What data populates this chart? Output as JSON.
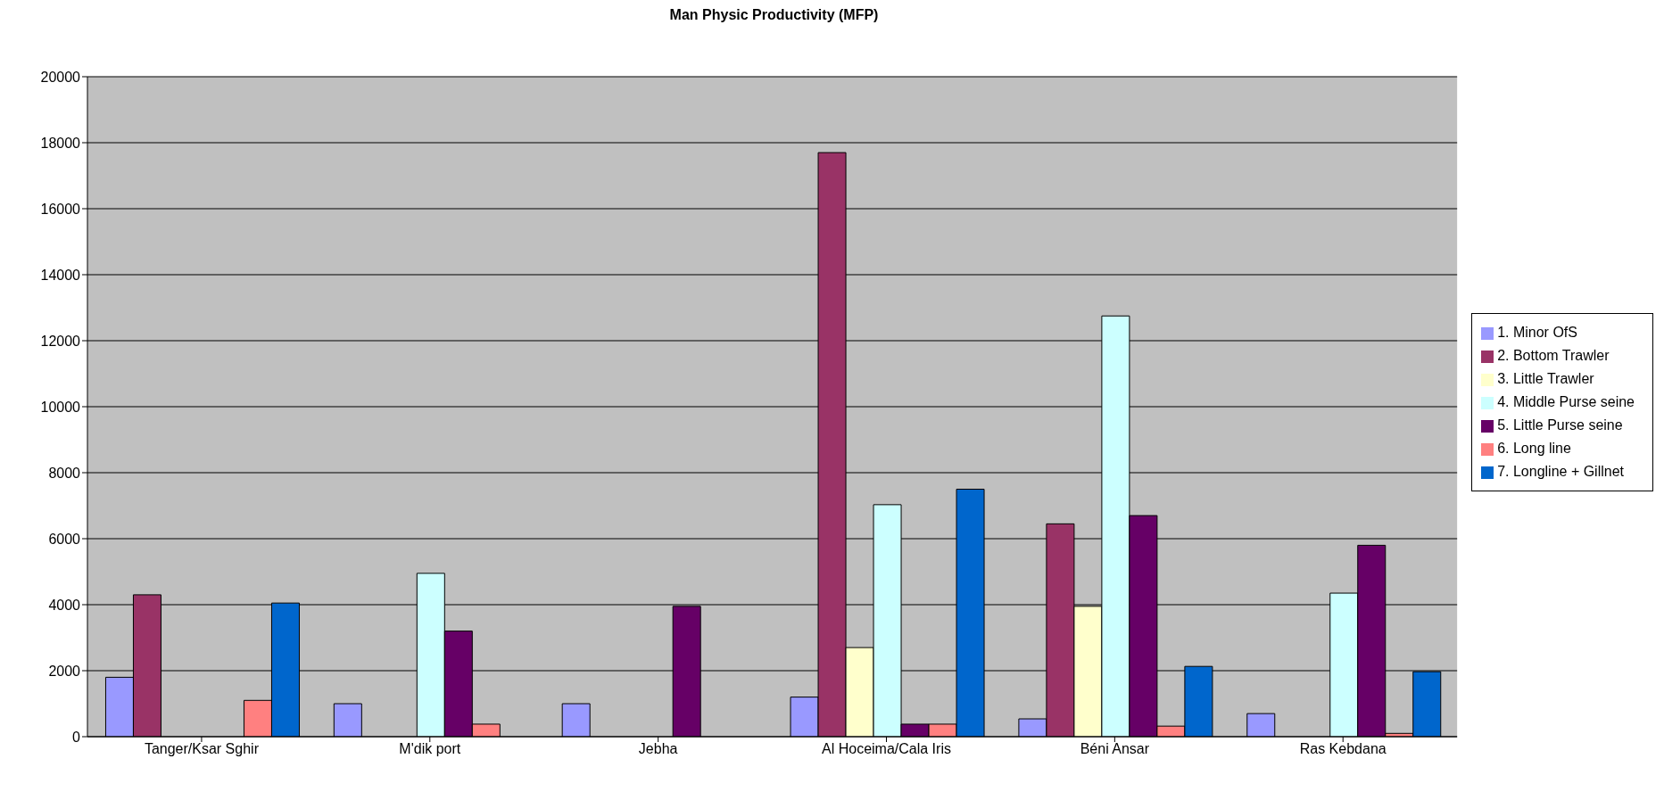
{
  "chart_data": {
    "type": "bar",
    "title": "Man Physic Productivity (MFP)",
    "categories": [
      "Tanger/Ksar Sghir",
      "M'dik port",
      "Jebha",
      "Al Hoceima/Cala Iris",
      "Béni Ansar",
      "Ras Kebdana"
    ],
    "series": [
      {
        "name": "1. Minor OfS",
        "color": "#9999ff",
        "values": [
          1800,
          1000,
          1000,
          1200,
          540,
          700
        ]
      },
      {
        "name": "2. Bottom Trawler",
        "color": "#993366",
        "values": [
          4300,
          null,
          null,
          17700,
          6450,
          null
        ]
      },
      {
        "name": "3. Little Trawler",
        "color": "#ffffcc",
        "values": [
          null,
          null,
          null,
          2700,
          3950,
          null
        ]
      },
      {
        "name": "4. Middle Purse seine",
        "color": "#ccffff",
        "values": [
          null,
          4950,
          null,
          7030,
          12750,
          4350
        ]
      },
      {
        "name": "5. Little Purse seine",
        "color": "#660066",
        "values": [
          null,
          3200,
          3950,
          380,
          6700,
          5800
        ]
      },
      {
        "name": "6. Long line",
        "color": "#ff8080",
        "values": [
          1100,
          380,
          null,
          380,
          320,
          100
        ]
      },
      {
        "name": "7. Longline + Gillnet",
        "color": "#0066cc",
        "values": [
          4050,
          null,
          null,
          7500,
          2130,
          1970
        ]
      }
    ],
    "ylim": [
      0,
      20000
    ],
    "yticks": [
      0,
      2000,
      4000,
      6000,
      8000,
      10000,
      12000,
      14000,
      16000,
      18000,
      20000
    ],
    "grid": "y",
    "legend": "right"
  }
}
